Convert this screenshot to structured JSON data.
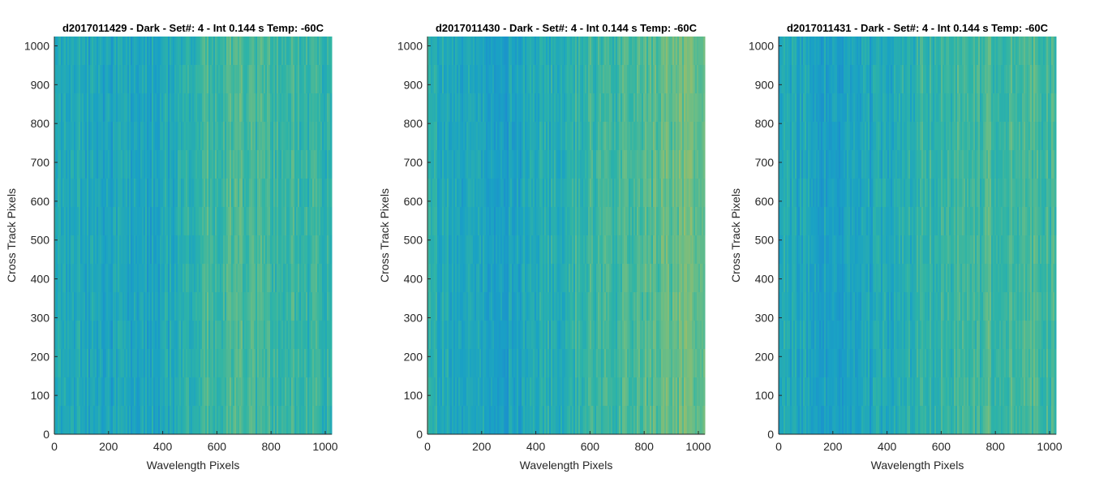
{
  "figure": {
    "background": "#ffffff",
    "colormap": [
      "#1c8ad0",
      "#1aa2c4",
      "#2fb4a6",
      "#6cbd85",
      "#a6bd62"
    ]
  },
  "chart_data": [
    {
      "type": "heatmap",
      "title": "d2017011429 - Dark - Set#: 4 - Int 0.144 s Temp: -60C",
      "xlabel": "Wavelength Pixels",
      "ylabel": "Cross Track Pixels",
      "xlim": [
        0,
        1024
      ],
      "ylim": [
        0,
        1024
      ],
      "xticks": [
        0,
        200,
        400,
        600,
        800,
        1000
      ],
      "yticks": [
        0,
        100,
        200,
        300,
        400,
        500,
        600,
        700,
        800,
        900,
        1000
      ],
      "color_trend": [
        0.35,
        0.32,
        0.28,
        0.26,
        0.3,
        0.4,
        0.55,
        0.6,
        0.58,
        0.55,
        0.5,
        0.45
      ]
    },
    {
      "type": "heatmap",
      "title": "d2017011430 - Dark - Set#: 4 - Int 0.144 s Temp: -60C",
      "xlabel": "Wavelength Pixels",
      "ylabel": "Cross Track Pixels",
      "xlim": [
        0,
        1024
      ],
      "ylim": [
        0,
        1024
      ],
      "xticks": [
        0,
        200,
        400,
        600,
        800,
        1000
      ],
      "yticks": [
        0,
        100,
        200,
        300,
        400,
        500,
        600,
        700,
        800,
        900,
        1000
      ],
      "color_trend": [
        0.4,
        0.32,
        0.26,
        0.25,
        0.3,
        0.4,
        0.5,
        0.55,
        0.6,
        0.65,
        0.72,
        0.82
      ]
    },
    {
      "type": "heatmap",
      "title": "d2017011431 - Dark - Set#: 4 - Int 0.144 s Temp: -60C",
      "xlabel": "Wavelength Pixels",
      "ylabel": "Cross Track Pixels",
      "xlim": [
        0,
        1024
      ],
      "ylim": [
        0,
        1024
      ],
      "xticks": [
        0,
        200,
        400,
        600,
        800,
        1000
      ],
      "yticks": [
        0,
        100,
        200,
        300,
        400,
        500,
        600,
        700,
        800,
        900,
        1000
      ],
      "color_trend": [
        0.38,
        0.3,
        0.26,
        0.27,
        0.33,
        0.42,
        0.5,
        0.55,
        0.56,
        0.6,
        0.62,
        0.55
      ]
    }
  ]
}
